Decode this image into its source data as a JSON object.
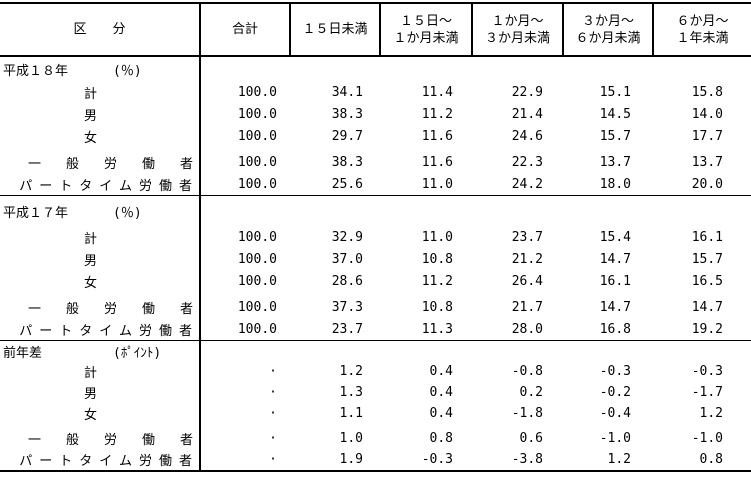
{
  "page": {
    "background": "#ffffff",
    "text_color": "#000000",
    "border_color": "#000000"
  },
  "header": {
    "columns": [
      "区　　分",
      "合計",
      "１５日未満",
      "１５日～\n１か月未満",
      "１か月～\n３か月未満",
      "３か月～\n６か月未満",
      "６か月～\n１年未満"
    ]
  },
  "blocks": [
    {
      "title": "平成１８年",
      "unit": "(％)",
      "rows": [
        {
          "label": "計",
          "values": [
            "100.0",
            "34.1",
            "11.4",
            "22.9",
            "15.1",
            "15.8"
          ]
        },
        {
          "label": "男",
          "values": [
            "100.0",
            "38.3",
            "11.2",
            "21.4",
            "14.5",
            "14.0"
          ]
        },
        {
          "label": "女",
          "values": [
            "100.0",
            "29.7",
            "11.6",
            "24.6",
            "15.7",
            "17.7"
          ]
        },
        {
          "label": "一　般　労　働　者",
          "values": [
            "100.0",
            "38.3",
            "11.6",
            "22.3",
            "13.7",
            "13.7"
          ]
        },
        {
          "label": "パートタイム労働者",
          "values": [
            "100.0",
            "25.6",
            "11.0",
            "24.2",
            "18.0",
            "20.0"
          ]
        }
      ]
    },
    {
      "title": "平成１７年",
      "unit": "(％)",
      "rows": [
        {
          "label": "計",
          "values": [
            "100.0",
            "32.9",
            "11.0",
            "23.7",
            "15.4",
            "16.1"
          ]
        },
        {
          "label": "男",
          "values": [
            "100.0",
            "37.0",
            "10.8",
            "21.2",
            "14.7",
            "15.7"
          ]
        },
        {
          "label": "女",
          "values": [
            "100.0",
            "28.6",
            "11.2",
            "26.4",
            "16.1",
            "16.5"
          ]
        },
        {
          "label": "一　般　労　働　者",
          "values": [
            "100.0",
            "37.3",
            "10.8",
            "21.7",
            "14.7",
            "14.7"
          ]
        },
        {
          "label": "パートタイム労働者",
          "values": [
            "100.0",
            "23.7",
            "11.3",
            "28.0",
            "16.8",
            "19.2"
          ]
        }
      ]
    },
    {
      "title": "前年差",
      "unit": "(ﾎﾟｲﾝﾄ)",
      "rows": [
        {
          "label": "計",
          "values": [
            "·",
            "1.2",
            "0.4",
            "-0.8",
            "-0.3",
            "-0.3"
          ]
        },
        {
          "label": "男",
          "values": [
            "·",
            "1.3",
            "0.4",
            "0.2",
            "-0.2",
            "-1.7"
          ]
        },
        {
          "label": "女",
          "values": [
            "·",
            "1.1",
            "0.4",
            "-1.8",
            "-0.4",
            "1.2"
          ]
        },
        {
          "label": "一　般　労　働　者",
          "values": [
            "·",
            "1.0",
            "0.8",
            "0.6",
            "-1.0",
            "-1.0"
          ]
        },
        {
          "label": "パートタイム労働者",
          "values": [
            "·",
            "1.9",
            "-0.3",
            "-3.8",
            "1.2",
            "0.8"
          ]
        }
      ]
    }
  ]
}
